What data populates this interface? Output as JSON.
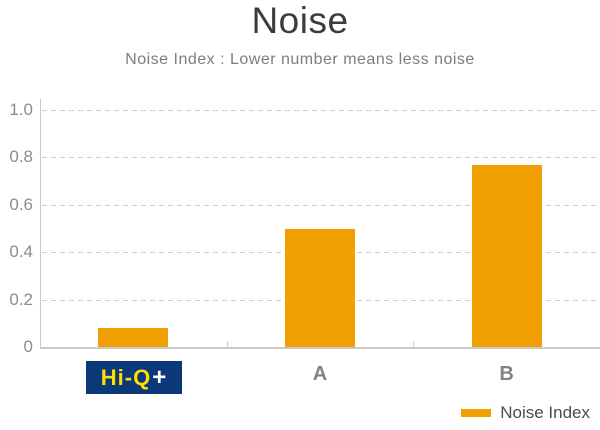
{
  "title": "Noise",
  "subtitle": "Noise Index : Lower number means less noise",
  "logo": {
    "text": "Hi-Q",
    "plus": "+"
  },
  "legend": {
    "label": "Noise Index"
  },
  "colors": {
    "bar": "#F0A000",
    "logo_background": "#0B3878",
    "logo_text": "#FFDE00",
    "logo_plus": "#FFFFFF",
    "grid": "#CDCDCD",
    "axis": "#C9C9C9",
    "title_text": "#3C3C3C",
    "subtitle_text": "#7D7D7D",
    "tick_label_text": "#8C8C8C",
    "category_label_text": "#828282",
    "legend_text": "#4B4B4B"
  },
  "chart_data": {
    "type": "bar",
    "categories": [
      "Hi-Q+",
      "A",
      "B"
    ],
    "values": [
      0.08,
      0.5,
      0.77
    ],
    "title": "Noise",
    "subtitle": "Noise Index : Lower number means less noise",
    "xlabel": "",
    "ylabel": "",
    "ylim": [
      0,
      1.0
    ],
    "yticks": [
      0,
      0.2,
      0.4,
      0.6,
      0.8,
      1.0
    ],
    "ytick_labels": [
      "0",
      "0.2",
      "0.4",
      "0.6",
      "0.8",
      "1.0"
    ],
    "grid": true,
    "bar_color": "#F0A000",
    "legend_entries": [
      "Noise Index"
    ],
    "legend_position": "bottom-right"
  }
}
